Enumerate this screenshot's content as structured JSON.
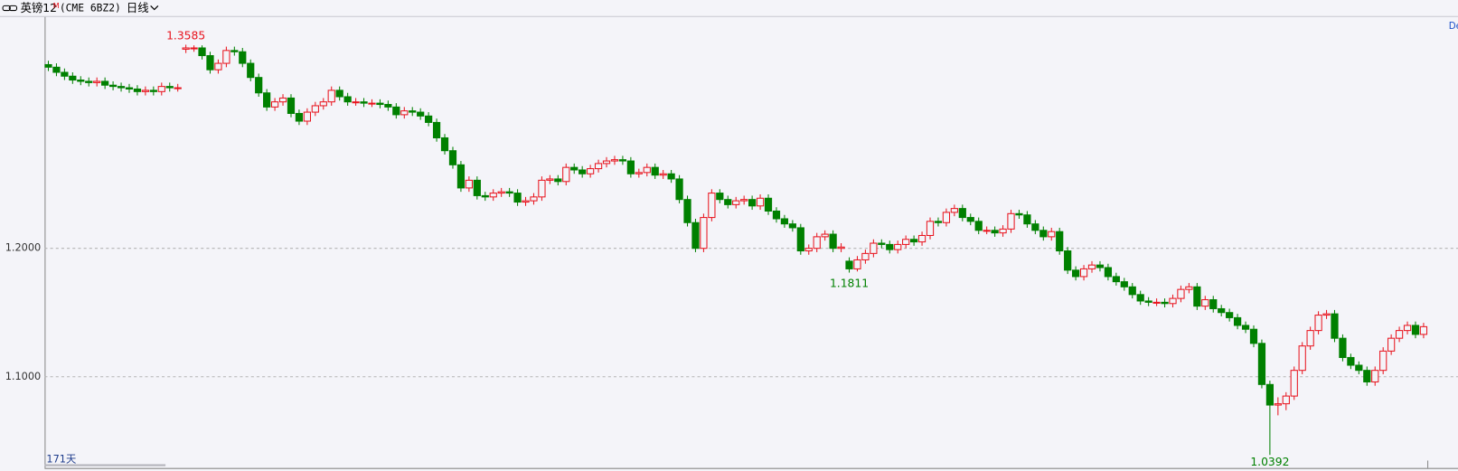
{
  "header": {
    "title": "英镑12",
    "superscript": "M",
    "symbol": "(CME 6BZ2)",
    "period": "日线",
    "corner_label": "De"
  },
  "chart_data": {
    "type": "candlestick",
    "up_color": "#e8141e",
    "down_color": "#008000",
    "ylim": [
      1.029,
      1.383
    ],
    "yticks": [
      {
        "value": 1.1,
        "label": "1.1000"
      },
      {
        "value": 1.2,
        "label": "1.2000"
      }
    ],
    "grid": true,
    "day_count": "171天",
    "open": [
      1.343,
      1.341,
      1.337,
      1.334,
      1.331,
      1.33,
      1.329,
      1.33,
      1.327,
      1.326,
      1.325,
      1.324,
      1.322,
      1.323,
      1.322,
      1.326,
      1.325,
      1.355,
      1.356,
      1.356,
      1.35,
      1.339,
      1.344,
      1.354,
      1.353,
      1.344,
      1.333,
      1.321,
      1.31,
      1.314,
      1.317,
      1.305,
      1.299,
      1.306,
      1.311,
      1.314,
      1.323,
      1.318,
      1.314,
      1.314,
      1.313,
      1.313,
      1.312,
      1.31,
      1.304,
      1.307,
      1.306,
      1.303,
      1.298,
      1.286,
      1.276,
      1.265,
      1.247,
      1.253,
      1.241,
      1.24,
      1.243,
      1.244,
      1.243,
      1.236,
      1.237,
      1.24,
      1.253,
      1.254,
      1.252,
      1.263,
      1.261,
      1.258,
      1.262,
      1.266,
      1.268,
      1.269,
      1.268,
      1.258,
      1.259,
      1.263,
      1.257,
      1.258,
      1.254,
      1.238,
      1.22,
      1.2,
      1.224,
      1.243,
      1.238,
      1.234,
      1.237,
      1.238,
      1.233,
      1.239,
      1.229,
      1.223,
      1.219,
      1.216,
      1.198,
      1.2,
      1.209,
      1.211,
      1.2,
      1.19,
      1.184,
      1.191,
      1.196,
      1.204,
      1.203,
      1.199,
      1.203,
      1.207,
      1.205,
      1.21,
      1.221,
      1.22,
      1.228,
      1.231,
      1.224,
      1.221,
      1.214,
      1.214,
      1.212,
      1.215,
      1.227,
      1.226,
      1.219,
      1.214,
      1.209,
      1.213,
      1.198,
      1.183,
      1.178,
      1.184,
      1.187,
      1.185,
      1.178,
      1.174,
      1.17,
      1.164,
      1.159,
      1.158,
      1.158,
      1.157,
      1.161,
      1.168,
      1.17,
      1.155,
      1.16,
      1.153,
      1.15,
      1.146,
      1.14,
      1.137,
      1.126,
      1.094,
      1.078,
      1.079,
      1.085,
      1.105,
      1.124,
      1.136,
      1.148,
      1.149,
      1.13,
      1.115,
      1.109,
      1.105,
      1.096,
      1.105,
      1.12,
      1.13,
      1.136,
      1.14,
      1.133
    ],
    "high": [
      1.346,
      1.344,
      1.34,
      1.337,
      1.334,
      1.333,
      1.333,
      1.333,
      1.33,
      1.329,
      1.328,
      1.327,
      1.326,
      1.326,
      1.329,
      1.329,
      1.328,
      1.3585,
      1.358,
      1.358,
      1.353,
      1.347,
      1.357,
      1.357,
      1.356,
      1.347,
      1.336,
      1.324,
      1.317,
      1.32,
      1.32,
      1.308,
      1.309,
      1.314,
      1.317,
      1.326,
      1.326,
      1.321,
      1.317,
      1.317,
      1.316,
      1.316,
      1.315,
      1.313,
      1.31,
      1.31,
      1.309,
      1.306,
      1.301,
      1.289,
      1.279,
      1.268,
      1.256,
      1.256,
      1.244,
      1.246,
      1.247,
      1.247,
      1.246,
      1.24,
      1.243,
      1.256,
      1.257,
      1.257,
      1.266,
      1.266,
      1.264,
      1.265,
      1.269,
      1.271,
      1.272,
      1.272,
      1.271,
      1.262,
      1.266,
      1.266,
      1.261,
      1.261,
      1.257,
      1.241,
      1.223,
      1.227,
      1.246,
      1.246,
      1.241,
      1.24,
      1.241,
      1.241,
      1.242,
      1.242,
      1.232,
      1.226,
      1.222,
      1.219,
      1.203,
      1.212,
      1.214,
      1.214,
      1.204,
      1.193,
      1.194,
      1.199,
      1.207,
      1.207,
      1.206,
      1.206,
      1.21,
      1.21,
      1.213,
      1.224,
      1.224,
      1.231,
      1.234,
      1.234,
      1.227,
      1.224,
      1.217,
      1.217,
      1.218,
      1.23,
      1.23,
      1.229,
      1.222,
      1.217,
      1.216,
      1.216,
      1.201,
      1.186,
      1.187,
      1.19,
      1.19,
      1.188,
      1.181,
      1.177,
      1.173,
      1.167,
      1.162,
      1.161,
      1.161,
      1.164,
      1.171,
      1.173,
      1.173,
      1.163,
      1.163,
      1.156,
      1.153,
      1.149,
      1.143,
      1.14,
      1.129,
      1.097,
      1.084,
      1.088,
      1.108,
      1.127,
      1.139,
      1.151,
      1.152,
      1.152,
      1.133,
      1.118,
      1.112,
      1.108,
      1.108,
      1.123,
      1.133,
      1.139,
      1.143,
      1.143,
      1.142
    ],
    "low": [
      1.338,
      1.334,
      1.331,
      1.328,
      1.327,
      1.326,
      1.326,
      1.324,
      1.323,
      1.322,
      1.321,
      1.319,
      1.319,
      1.319,
      1.319,
      1.322,
      1.322,
      1.352,
      1.353,
      1.347,
      1.336,
      1.336,
      1.341,
      1.35,
      1.341,
      1.33,
      1.318,
      1.307,
      1.307,
      1.311,
      1.302,
      1.296,
      1.296,
      1.303,
      1.308,
      1.311,
      1.315,
      1.311,
      1.311,
      1.31,
      1.31,
      1.309,
      1.307,
      1.301,
      1.301,
      1.303,
      1.3,
      1.295,
      1.283,
      1.273,
      1.262,
      1.244,
      1.244,
      1.238,
      1.237,
      1.237,
      1.24,
      1.24,
      1.233,
      1.233,
      1.234,
      1.237,
      1.25,
      1.249,
      1.249,
      1.258,
      1.255,
      1.255,
      1.259,
      1.263,
      1.265,
      1.265,
      1.255,
      1.255,
      1.256,
      1.254,
      1.254,
      1.251,
      1.235,
      1.217,
      1.197,
      1.197,
      1.221,
      1.235,
      1.231,
      1.231,
      1.234,
      1.23,
      1.23,
      1.226,
      1.22,
      1.216,
      1.213,
      1.195,
      1.195,
      1.197,
      1.206,
      1.197,
      1.197,
      1.1811,
      1.182,
      1.188,
      1.193,
      1.2,
      1.196,
      1.196,
      1.2,
      1.202,
      1.202,
      1.207,
      1.217,
      1.217,
      1.225,
      1.221,
      1.218,
      1.211,
      1.211,
      1.209,
      1.209,
      1.212,
      1.223,
      1.216,
      1.211,
      1.206,
      1.206,
      1.195,
      1.18,
      1.175,
      1.175,
      1.181,
      1.182,
      1.175,
      1.171,
      1.167,
      1.161,
      1.156,
      1.155,
      1.155,
      1.154,
      1.154,
      1.158,
      1.165,
      1.152,
      1.152,
      1.15,
      1.147,
      1.143,
      1.137,
      1.134,
      1.123,
      1.091,
      1.0392,
      1.07,
      1.074,
      1.082,
      1.102,
      1.121,
      1.133,
      1.145,
      1.127,
      1.112,
      1.106,
      1.102,
      1.093,
      1.093,
      1.102,
      1.117,
      1.127,
      1.133,
      1.13,
      1.13
    ],
    "close": [
      1.341,
      1.337,
      1.334,
      1.331,
      1.33,
      1.329,
      1.33,
      1.327,
      1.326,
      1.325,
      1.324,
      1.322,
      1.323,
      1.322,
      1.326,
      1.325,
      1.325,
      1.356,
      1.356,
      1.35,
      1.339,
      1.344,
      1.354,
      1.353,
      1.344,
      1.333,
      1.321,
      1.31,
      1.314,
      1.317,
      1.305,
      1.299,
      1.306,
      1.311,
      1.314,
      1.323,
      1.318,
      1.314,
      1.314,
      1.313,
      1.313,
      1.312,
      1.31,
      1.304,
      1.307,
      1.306,
      1.303,
      1.298,
      1.286,
      1.276,
      1.265,
      1.247,
      1.253,
      1.241,
      1.24,
      1.243,
      1.244,
      1.243,
      1.236,
      1.237,
      1.24,
      1.253,
      1.254,
      1.252,
      1.263,
      1.261,
      1.258,
      1.262,
      1.266,
      1.268,
      1.269,
      1.268,
      1.258,
      1.259,
      1.263,
      1.257,
      1.258,
      1.254,
      1.238,
      1.22,
      1.2,
      1.224,
      1.243,
      1.238,
      1.234,
      1.237,
      1.238,
      1.233,
      1.239,
      1.229,
      1.223,
      1.219,
      1.216,
      1.198,
      1.2,
      1.209,
      1.211,
      1.2,
      1.201,
      1.184,
      1.191,
      1.196,
      1.204,
      1.203,
      1.199,
      1.203,
      1.207,
      1.205,
      1.21,
      1.221,
      1.22,
      1.228,
      1.231,
      1.224,
      1.221,
      1.214,
      1.214,
      1.212,
      1.215,
      1.227,
      1.226,
      1.219,
      1.214,
      1.209,
      1.213,
      1.198,
      1.183,
      1.178,
      1.184,
      1.187,
      1.185,
      1.178,
      1.174,
      1.17,
      1.164,
      1.159,
      1.158,
      1.158,
      1.157,
      1.161,
      1.168,
      1.17,
      1.155,
      1.16,
      1.153,
      1.15,
      1.146,
      1.14,
      1.137,
      1.126,
      1.094,
      1.078,
      1.079,
      1.085,
      1.105,
      1.124,
      1.136,
      1.148,
      1.149,
      1.13,
      1.115,
      1.109,
      1.105,
      1.096,
      1.105,
      1.12,
      1.13,
      1.136,
      1.14,
      1.133,
      1.139
    ]
  }
}
